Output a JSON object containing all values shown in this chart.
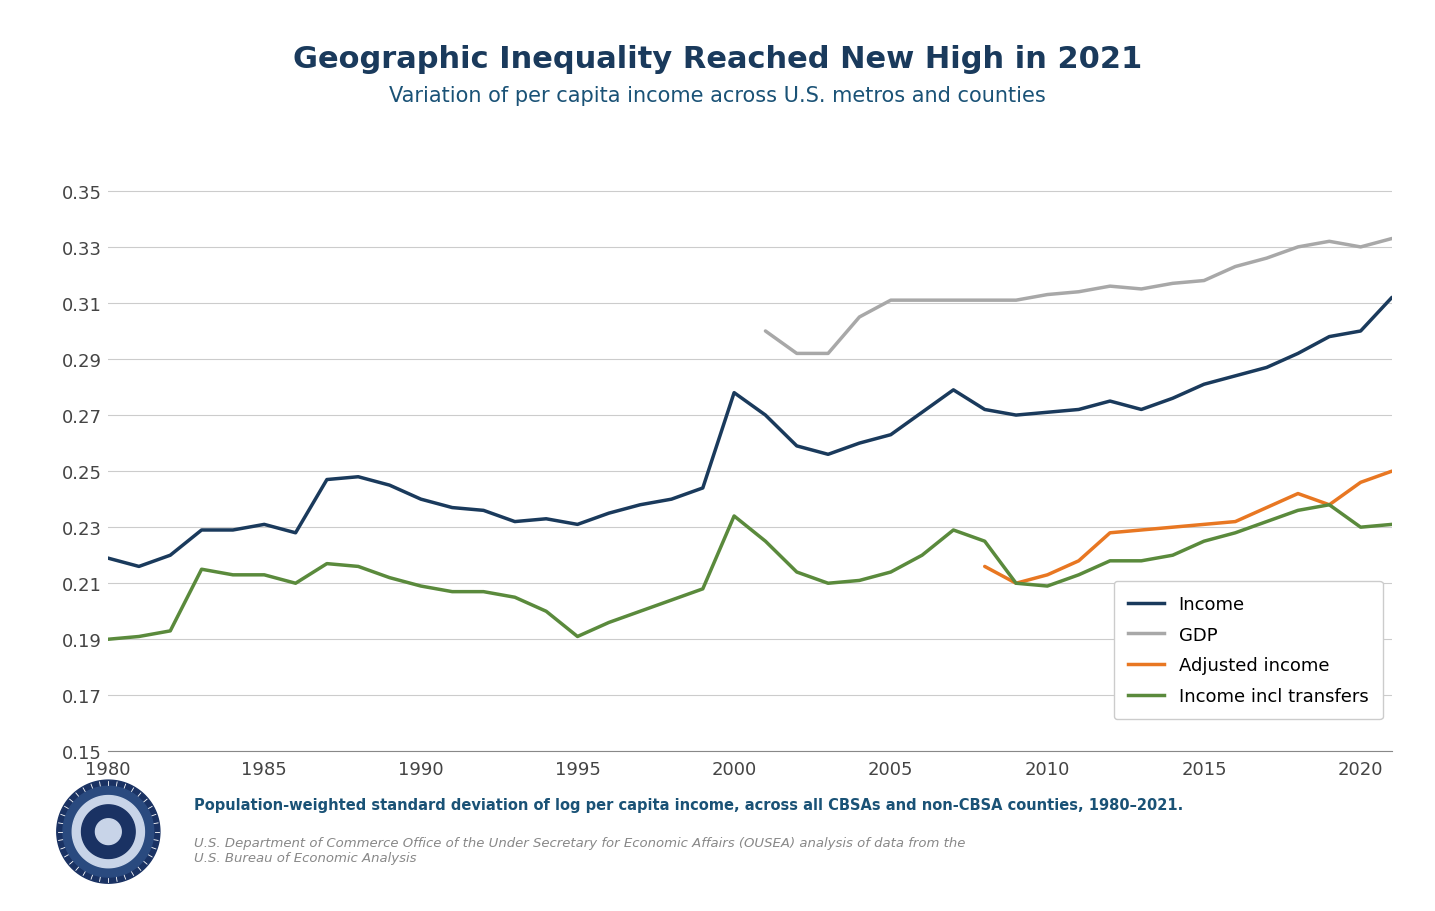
{
  "title": "Geographic Inequality Reached New High in 2021",
  "subtitle": "Variation of per capita income across U.S. metros and counties",
  "title_color": "#1a3a5c",
  "subtitle_color": "#1a5276",
  "background_color": "#ffffff",
  "xlim": [
    1980,
    2021
  ],
  "ylim": [
    0.15,
    0.355
  ],
  "yticks": [
    0.15,
    0.17,
    0.19,
    0.21,
    0.23,
    0.25,
    0.27,
    0.29,
    0.31,
    0.33,
    0.35
  ],
  "xticks": [
    1980,
    1985,
    1990,
    1995,
    2000,
    2005,
    2010,
    2015,
    2020
  ],
  "footnote1": "Population-weighted standard deviation of log per capita income, across all CBSAs and non-CBSA counties, 1980–2021.",
  "footnote2": "U.S. Department of Commerce Office of the Under Secretary for Economic Affairs (OUSEA) analysis of data from the\nU.S. Bureau of Economic Analysis",
  "footnote1_color": "#1a5276",
  "footnote2_color": "#888888",
  "series": {
    "Income": {
      "color": "#1a3a5c",
      "linewidth": 2.5,
      "years": [
        1980,
        1981,
        1982,
        1983,
        1984,
        1985,
        1986,
        1987,
        1988,
        1989,
        1990,
        1991,
        1992,
        1993,
        1994,
        1995,
        1996,
        1997,
        1998,
        1999,
        2000,
        2001,
        2002,
        2003,
        2004,
        2005,
        2006,
        2007,
        2008,
        2009,
        2010,
        2011,
        2012,
        2013,
        2014,
        2015,
        2016,
        2017,
        2018,
        2019,
        2020,
        2021
      ],
      "values": [
        0.219,
        0.216,
        0.22,
        0.229,
        0.229,
        0.231,
        0.228,
        0.247,
        0.248,
        0.245,
        0.24,
        0.237,
        0.236,
        0.232,
        0.233,
        0.231,
        0.235,
        0.238,
        0.24,
        0.244,
        0.278,
        0.27,
        0.259,
        0.256,
        0.26,
        0.263,
        0.271,
        0.279,
        0.272,
        0.27,
        0.271,
        0.272,
        0.275,
        0.272,
        0.276,
        0.281,
        0.284,
        0.287,
        0.292,
        0.298,
        0.3,
        0.312
      ]
    },
    "GDP": {
      "color": "#a8a8a8",
      "linewidth": 2.5,
      "years": [
        2001,
        2002,
        2003,
        2004,
        2005,
        2006,
        2007,
        2008,
        2009,
        2010,
        2011,
        2012,
        2013,
        2014,
        2015,
        2016,
        2017,
        2018,
        2019,
        2020,
        2021
      ],
      "values": [
        0.3,
        0.292,
        0.292,
        0.305,
        0.311,
        0.311,
        0.311,
        0.311,
        0.311,
        0.313,
        0.314,
        0.316,
        0.315,
        0.317,
        0.318,
        0.323,
        0.326,
        0.33,
        0.332,
        0.33,
        0.333
      ]
    },
    "Adjusted income": {
      "color": "#e87722",
      "linewidth": 2.5,
      "years": [
        2008,
        2009,
        2010,
        2011,
        2012,
        2013,
        2014,
        2015,
        2016,
        2017,
        2018,
        2019,
        2020,
        2021
      ],
      "values": [
        0.216,
        0.21,
        0.213,
        0.218,
        0.228,
        0.229,
        0.23,
        0.231,
        0.232,
        0.237,
        0.242,
        0.238,
        0.246,
        0.25
      ]
    },
    "Income incl transfers": {
      "color": "#5a8a3c",
      "linewidth": 2.5,
      "years": [
        1980,
        1981,
        1982,
        1983,
        1984,
        1985,
        1986,
        1987,
        1988,
        1989,
        1990,
        1991,
        1992,
        1993,
        1994,
        1995,
        1996,
        1997,
        1998,
        1999,
        2000,
        2001,
        2002,
        2003,
        2004,
        2005,
        2006,
        2007,
        2008,
        2009,
        2010,
        2011,
        2012,
        2013,
        2014,
        2015,
        2016,
        2017,
        2018,
        2019,
        2020,
        2021
      ],
      "values": [
        0.19,
        0.191,
        0.193,
        0.215,
        0.213,
        0.213,
        0.21,
        0.217,
        0.216,
        0.212,
        0.209,
        0.207,
        0.207,
        0.205,
        0.2,
        0.191,
        0.196,
        0.2,
        0.204,
        0.208,
        0.234,
        0.225,
        0.214,
        0.21,
        0.211,
        0.214,
        0.22,
        0.229,
        0.225,
        0.21,
        0.209,
        0.213,
        0.218,
        0.218,
        0.22,
        0.225,
        0.228,
        0.232,
        0.236,
        0.238,
        0.23,
        0.231
      ]
    }
  },
  "legend_order": [
    "Income",
    "GDP",
    "Adjusted income",
    "Income incl transfers"
  ]
}
